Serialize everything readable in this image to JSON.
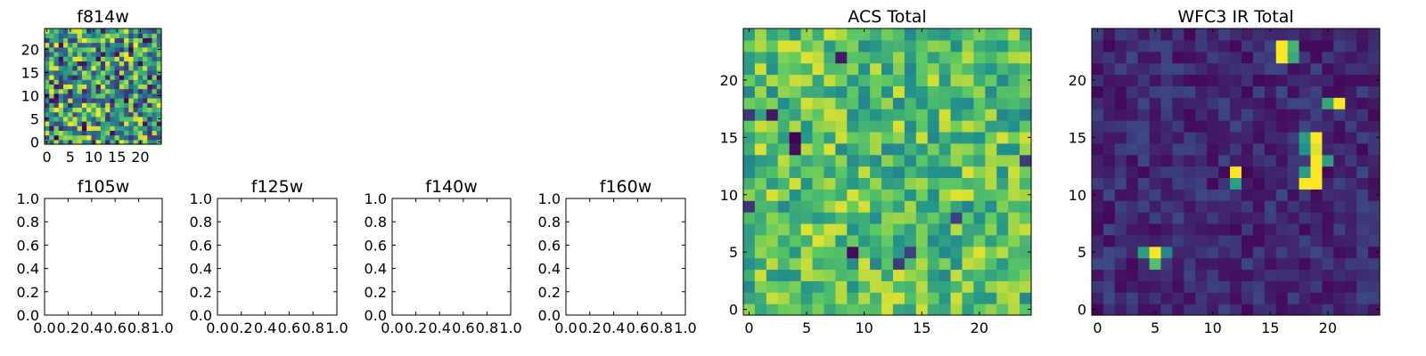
{
  "colormap": [
    "#440154",
    "#3b528b",
    "#21918c",
    "#5ec962",
    "#fde725"
  ],
  "chart_data": [
    {
      "id": "f814w",
      "type": "heatmap",
      "title": "f814w",
      "grid_size": 25,
      "xlim": [
        -0.5,
        24.5
      ],
      "ylim": [
        -0.5,
        24.5
      ],
      "xticks": [
        "0",
        "5",
        "10",
        "15",
        "20"
      ],
      "yticks": [
        "0",
        "5",
        "10",
        "15",
        "20"
      ],
      "seed": 814,
      "value_range": [
        0.15,
        1.0
      ],
      "dark_fraction": 0.08
    },
    {
      "id": "f105w",
      "type": "empty",
      "title": "f105w",
      "xlim": [
        0,
        1
      ],
      "ylim": [
        0,
        1
      ],
      "xticks": [
        "0.0",
        "0.2",
        "0.4",
        "0.6",
        "0.8",
        "1.0"
      ],
      "yticks": [
        "0.0",
        "0.2",
        "0.4",
        "0.6",
        "0.8",
        "1.0"
      ]
    },
    {
      "id": "f125w",
      "type": "empty",
      "title": "f125w",
      "xlim": [
        0,
        1
      ],
      "ylim": [
        0,
        1
      ],
      "xticks": [
        "0.0",
        "0.2",
        "0.4",
        "0.6",
        "0.8",
        "1.0"
      ],
      "yticks": [
        "0.0",
        "0.2",
        "0.4",
        "0.6",
        "0.8",
        "1.0"
      ]
    },
    {
      "id": "f140w",
      "type": "empty",
      "title": "f140w",
      "xlim": [
        0,
        1
      ],
      "ylim": [
        0,
        1
      ],
      "xticks": [
        "0.0",
        "0.2",
        "0.4",
        "0.6",
        "0.8",
        "1.0"
      ],
      "yticks": [
        "0.0",
        "0.2",
        "0.4",
        "0.6",
        "0.8",
        "1.0"
      ]
    },
    {
      "id": "f160w",
      "type": "empty",
      "title": "f160w",
      "xlim": [
        0,
        1
      ],
      "ylim": [
        0,
        1
      ],
      "xticks": [
        "0.0",
        "0.2",
        "0.4",
        "0.6",
        "0.8",
        "1.0"
      ],
      "yticks": [
        "0.0",
        "0.2",
        "0.4",
        "0.6",
        "0.8",
        "1.0"
      ]
    },
    {
      "id": "acs-total",
      "type": "heatmap",
      "title": "ACS Total",
      "grid_size": 25,
      "xlim": [
        -0.5,
        24.5
      ],
      "ylim": [
        -0.5,
        24.5
      ],
      "xticks": [
        "0",
        "5",
        "10",
        "15",
        "20"
      ],
      "yticks": [
        "0",
        "5",
        "10",
        "15",
        "20"
      ],
      "seed": 1337,
      "value_range": [
        0.45,
        0.95
      ],
      "dark_fraction": 0.02
    },
    {
      "id": "wfc3-ir-total",
      "type": "heatmap",
      "title": "WFC3 IR Total",
      "grid_size": 25,
      "xlim": [
        -0.5,
        24.5
      ],
      "ylim": [
        -0.5,
        24.5
      ],
      "xticks": [
        "0",
        "5",
        "10",
        "15",
        "20"
      ],
      "yticks": [
        "0",
        "5",
        "10",
        "15",
        "20"
      ],
      "seed": 2024,
      "value_range": [
        0.02,
        0.22
      ],
      "dark_fraction": 0.0,
      "bright_pixels": [
        {
          "x": 16,
          "y": 23,
          "v": 1.0
        },
        {
          "x": 16,
          "y": 22,
          "v": 1.0
        },
        {
          "x": 17,
          "y": 23,
          "v": 0.65
        },
        {
          "x": 17,
          "y": 22,
          "v": 0.6
        },
        {
          "x": 21,
          "y": 18,
          "v": 1.0
        },
        {
          "x": 20,
          "y": 18,
          "v": 0.6
        },
        {
          "x": 19,
          "y": 15,
          "v": 1.0
        },
        {
          "x": 19,
          "y": 14,
          "v": 0.95
        },
        {
          "x": 19,
          "y": 13,
          "v": 1.0
        },
        {
          "x": 19,
          "y": 12,
          "v": 1.0
        },
        {
          "x": 19,
          "y": 11,
          "v": 1.0
        },
        {
          "x": 18,
          "y": 15,
          "v": 0.55
        },
        {
          "x": 18,
          "y": 14,
          "v": 0.5
        },
        {
          "x": 18,
          "y": 12,
          "v": 0.55
        },
        {
          "x": 18,
          "y": 11,
          "v": 1.0
        },
        {
          "x": 20,
          "y": 13,
          "v": 0.55
        },
        {
          "x": 12,
          "y": 12,
          "v": 1.0
        },
        {
          "x": 12,
          "y": 11,
          "v": 0.55
        },
        {
          "x": 5,
          "y": 5,
          "v": 1.0
        },
        {
          "x": 4,
          "y": 5,
          "v": 0.55
        },
        {
          "x": 5,
          "y": 4,
          "v": 0.7
        },
        {
          "x": 6,
          "y": 5,
          "v": 0.45
        }
      ]
    }
  ]
}
